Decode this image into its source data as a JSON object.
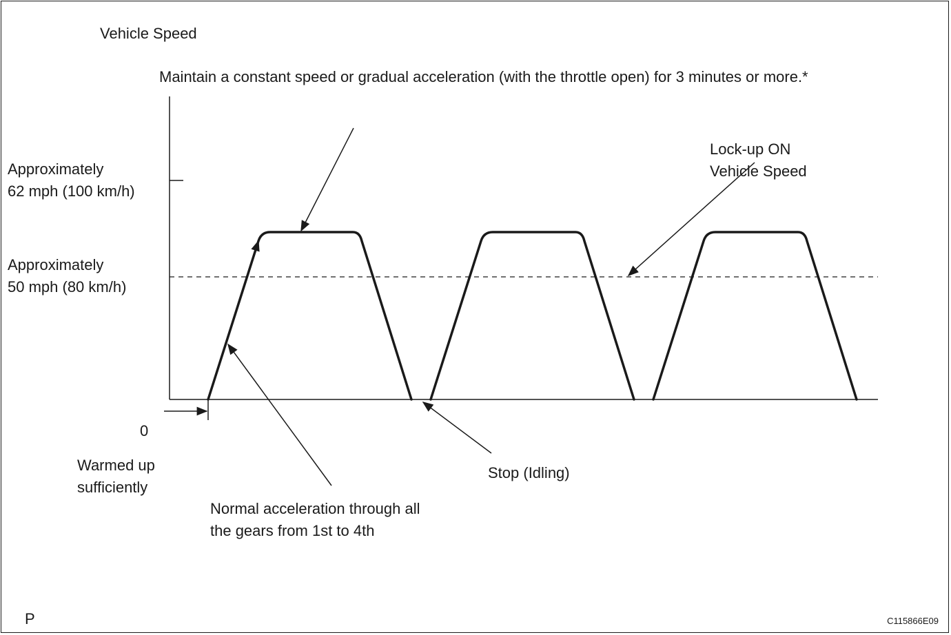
{
  "labels": {
    "y_axis_title": "Vehicle Speed",
    "note": "Maintain a constant speed or gradual acceleration (with the throttle open) for 3 minutes or more.*",
    "speed_62_line1": "Approximately",
    "speed_62_line2": "62 mph (100 km/h)",
    "speed_50_line1": "Approximately",
    "speed_50_line2": "50 mph (80 km/h)",
    "lockup_line1": "Lock-up ON",
    "lockup_line2": "Vehicle Speed",
    "zero": "0",
    "warmed_line1": "Warmed up",
    "warmed_line2": "sufficiently",
    "stop": "Stop (Idling)",
    "accel_line1": "Normal acceleration through all",
    "accel_line2": "the gears from 1st to 4th",
    "corner_left": "P",
    "corner_right": "C115866E09"
  }
}
